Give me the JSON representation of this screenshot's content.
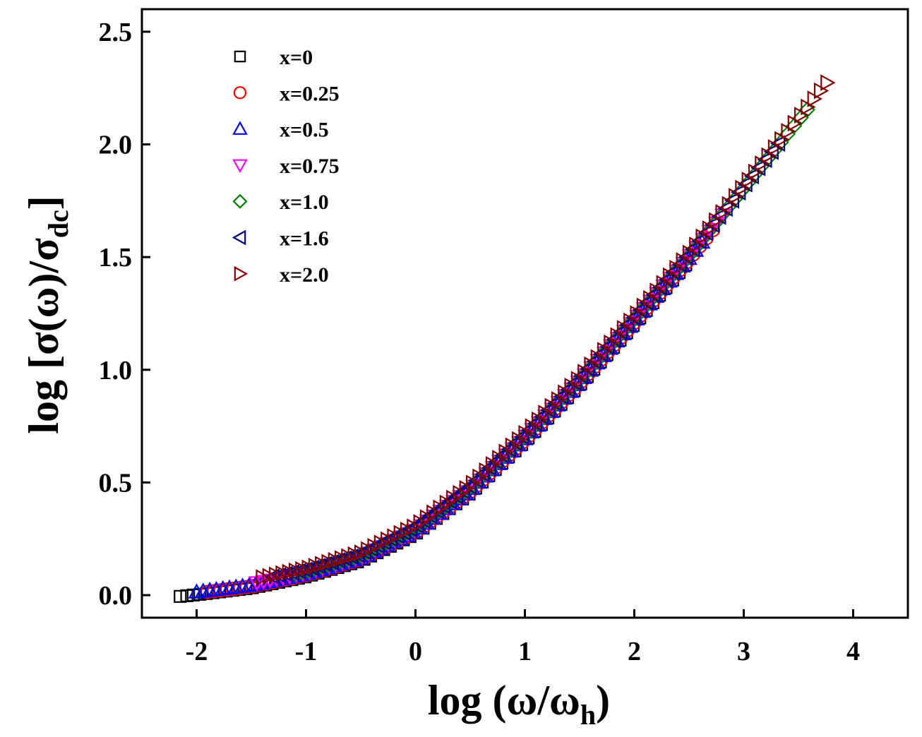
{
  "chart_data": {
    "type": "scatter",
    "xlabel": {
      "main": "log (ω/ω",
      "sub": "h",
      "end": ")"
    },
    "ylabel": {
      "main": "log [σ(ω)/σ",
      "sub": "dc",
      "end": "]"
    },
    "xlim": [
      -2.5,
      4.5
    ],
    "ylim": [
      -0.1,
      2.6
    ],
    "xticks": [
      -2,
      -1,
      0,
      1,
      2,
      3,
      4
    ],
    "yticks": [
      0.0,
      0.5,
      1.0,
      1.5,
      2.0,
      2.5
    ],
    "xtick_labels": [
      "-2",
      "-1",
      "0",
      "1",
      "2",
      "3",
      "4"
    ],
    "ytick_labels": [
      "0.0",
      "0.5",
      "1.0",
      "1.5",
      "2.0",
      "2.5"
    ],
    "legend_position": "top-left",
    "series": [
      {
        "name": "x=0",
        "label": "x=0",
        "marker": "square",
        "color": "#000000",
        "x_start": -2.15,
        "x_end": 2.5,
        "step": 0.06
      },
      {
        "name": "x=0.25",
        "label": "x=0.25",
        "marker": "circle",
        "color": "#ff0000",
        "x_start": -1.9,
        "x_end": 2.75,
        "step": 0.06
      },
      {
        "name": "x=0.5",
        "label": "x=0.5",
        "marker": "triangle-up",
        "color": "#0000ff",
        "x_start": -2.0,
        "x_end": 2.65,
        "step": 0.06
      },
      {
        "name": "x=0.75",
        "label": "x=0.75",
        "marker": "triangle-down",
        "color": "#ff00ff",
        "x_start": -1.45,
        "x_end": 2.85,
        "step": 0.06
      },
      {
        "name": "x=1.0",
        "label": "x=1.0",
        "marker": "diamond",
        "color": "#008000",
        "x_start": -1.1,
        "x_end": 3.6,
        "step": 0.06
      },
      {
        "name": "x=1.6",
        "label": "x=1.6",
        "marker": "triangle-left",
        "color": "#000080",
        "x_start": -1.3,
        "x_end": 3.35,
        "step": 0.06
      },
      {
        "name": "x=2.0",
        "label": "x=2.0",
        "marker": "triangle-right",
        "color": "#800000",
        "x_start": -1.4,
        "x_end": 3.8,
        "step": 0.06
      }
    ],
    "master_curve": {
      "x": [
        -2.2,
        -2.0,
        -1.5,
        -1.0,
        -0.5,
        0.0,
        0.5,
        1.0,
        1.5,
        2.0,
        2.5,
        3.0,
        3.5,
        3.8
      ],
      "y": [
        0.01,
        0.02,
        0.05,
        0.1,
        0.17,
        0.29,
        0.47,
        0.7,
        0.95,
        1.22,
        1.5,
        1.8,
        2.1,
        2.28
      ]
    }
  }
}
